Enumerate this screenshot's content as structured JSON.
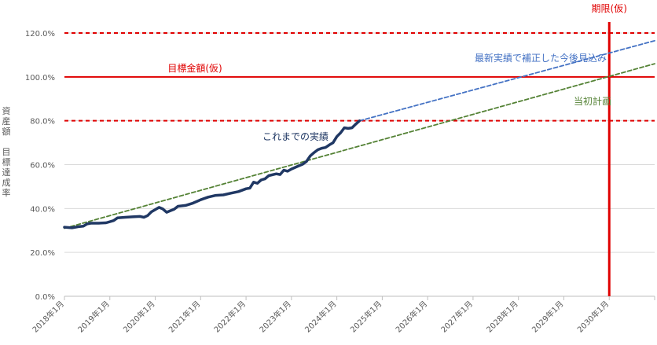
{
  "chart_data": {
    "type": "line",
    "ylabel": "資産額 目標達成率",
    "ylim": [
      0,
      1.2
    ],
    "yticks": [
      0,
      0.2,
      0.4,
      0.6,
      0.8,
      1.0,
      1.2
    ],
    "ytick_labels": [
      "0.0%",
      "20.0%",
      "40.0%",
      "60.0%",
      "80.0%",
      "100.0%",
      "120.0%"
    ],
    "xlim": [
      "2018-01",
      "2031-01"
    ],
    "xtick_labels": [
      "2018年1月",
      "2019年1月",
      "2020年1月",
      "2021年1月",
      "2022年1月",
      "2023年1月",
      "2024年1月",
      "2025年1月",
      "2026年1月",
      "2027年1月",
      "2028年1月",
      "2029年1月",
      "2030年1月"
    ],
    "series": [
      {
        "name": "これまでの実績",
        "color": "#203864",
        "style": "solid",
        "points": [
          [
            "2018-01",
            0.315
          ],
          [
            "2018-03",
            0.312
          ],
          [
            "2018-05",
            0.318
          ],
          [
            "2018-06",
            0.32
          ],
          [
            "2018-07",
            0.33
          ],
          [
            "2018-08",
            0.333
          ],
          [
            "2018-10",
            0.333
          ],
          [
            "2018-12",
            0.335
          ],
          [
            "2019-02",
            0.345
          ],
          [
            "2019-03",
            0.357
          ],
          [
            "2019-05",
            0.36
          ],
          [
            "2019-07",
            0.362
          ],
          [
            "2019-09",
            0.364
          ],
          [
            "2019-10",
            0.36
          ],
          [
            "2019-11",
            0.368
          ],
          [
            "2019-12",
            0.385
          ],
          [
            "2020-01",
            0.395
          ],
          [
            "2020-02",
            0.405
          ],
          [
            "2020-03",
            0.398
          ],
          [
            "2020-04",
            0.383
          ],
          [
            "2020-05",
            0.39
          ],
          [
            "2020-06",
            0.397
          ],
          [
            "2020-07",
            0.41
          ],
          [
            "2020-09",
            0.414
          ],
          [
            "2020-11",
            0.425
          ],
          [
            "2021-01",
            0.44
          ],
          [
            "2021-03",
            0.452
          ],
          [
            "2021-05",
            0.46
          ],
          [
            "2021-07",
            0.462
          ],
          [
            "2021-09",
            0.47
          ],
          [
            "2021-11",
            0.477
          ],
          [
            "2022-01",
            0.49
          ],
          [
            "2022-02",
            0.493
          ],
          [
            "2022-03",
            0.52
          ],
          [
            "2022-04",
            0.515
          ],
          [
            "2022-05",
            0.53
          ],
          [
            "2022-06",
            0.535
          ],
          [
            "2022-07",
            0.55
          ],
          [
            "2022-09",
            0.558
          ],
          [
            "2022-10",
            0.555
          ],
          [
            "2022-11",
            0.575
          ],
          [
            "2022-12",
            0.57
          ],
          [
            "2023-01",
            0.58
          ],
          [
            "2023-03",
            0.595
          ],
          [
            "2023-04",
            0.602
          ],
          [
            "2023-05",
            0.615
          ],
          [
            "2023-06",
            0.64
          ],
          [
            "2023-07",
            0.655
          ],
          [
            "2023-08",
            0.668
          ],
          [
            "2023-09",
            0.675
          ],
          [
            "2023-10",
            0.678
          ],
          [
            "2023-11",
            0.69
          ],
          [
            "2023-12",
            0.7
          ],
          [
            "2024-01",
            0.728
          ],
          [
            "2024-02",
            0.745
          ],
          [
            "2024-03",
            0.768
          ],
          [
            "2024-04",
            0.765
          ],
          [
            "2024-05",
            0.768
          ],
          [
            "2024-06",
            0.785
          ],
          [
            "2024-07",
            0.8
          ]
        ]
      },
      {
        "name": "最新実績で補正した今後見込み",
        "color": "#4472c4",
        "style": "dashed",
        "points": [
          [
            "2024-07",
            0.8
          ],
          [
            "2031-01",
            1.165
          ]
        ]
      },
      {
        "name": "当初計画",
        "color": "#548235",
        "style": "dashed",
        "points": [
          [
            "2018-01",
            0.31
          ],
          [
            "2031-01",
            1.06
          ]
        ]
      }
    ],
    "reference_lines": [
      {
        "orientation": "horizontal",
        "value": 1.2,
        "color": "#e00000",
        "style": "dashed"
      },
      {
        "orientation": "horizontal",
        "value": 1.0,
        "color": "#e00000",
        "style": "solid",
        "label": "目標金額(仮)"
      },
      {
        "orientation": "horizontal",
        "value": 0.8,
        "color": "#e00000",
        "style": "dashed"
      },
      {
        "orientation": "vertical",
        "value": "2030-01",
        "color": "#e00000",
        "style": "solid",
        "label": "期限(仮)"
      }
    ],
    "grid": "horizontal"
  }
}
